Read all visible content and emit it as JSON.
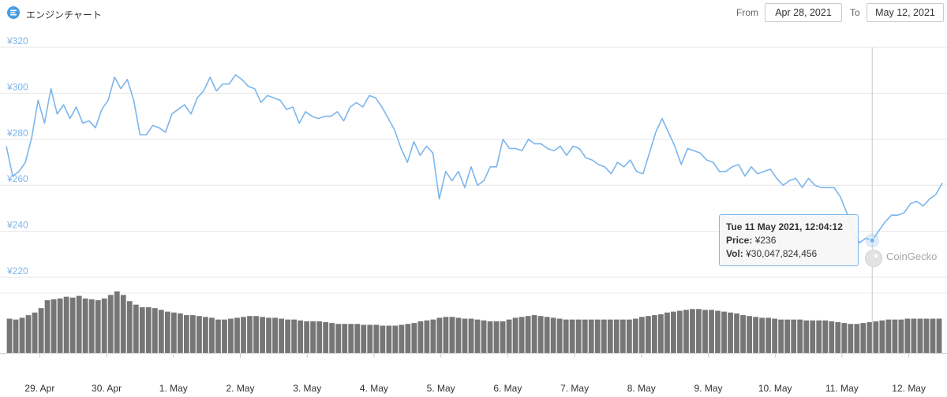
{
  "header": {
    "title": "エンジンチャート",
    "from_label": "From",
    "from_value": "Apr 28, 2021",
    "to_label": "To",
    "to_value": "May 12, 2021"
  },
  "tooltip": {
    "date": "Tue 11 May 2021, 12:04:12",
    "price_label": "Price:",
    "price_value": "¥236",
    "vol_label": "Vol:",
    "vol_value": "¥30,047,824,456"
  },
  "watermark": "CoinGecko",
  "colors": {
    "line": "#7cb5ec",
    "volume": "#767676",
    "grid": "#e6e6e6",
    "axis_text": "#7cb5ec"
  },
  "chart_data": {
    "type": "line",
    "title": "",
    "xlabel": "",
    "ylabel": "",
    "ylim": [
      220,
      320
    ],
    "yticks": [
      "¥220",
      "¥240",
      "¥260",
      "¥280",
      "¥300",
      "¥320"
    ],
    "xticks": [
      "29. Apr",
      "30. Apr",
      "1. May",
      "2. May",
      "3. May",
      "4. May",
      "5. May",
      "6. May",
      "7. May",
      "8. May",
      "9. May",
      "10. May",
      "11. May",
      "12. May"
    ],
    "x_start": "Apr 28, 2021 12:00",
    "x_end": "May 12, 2021 12:00",
    "grid": true,
    "legend": "none",
    "series": [
      {
        "values": [
          277,
          264,
          266,
          270,
          281,
          297,
          287,
          302,
          291,
          295,
          289,
          294,
          287,
          288,
          285,
          293,
          297,
          307,
          302,
          306,
          297,
          282,
          282,
          286,
          285,
          283,
          291,
          293,
          295,
          291,
          298,
          301,
          307,
          301,
          304,
          304,
          308,
          306,
          303,
          302,
          296,
          299,
          298,
          297,
          293,
          294,
          287,
          292,
          290,
          289,
          290,
          290,
          292,
          288,
          294,
          296,
          294,
          299,
          298,
          294,
          289,
          284,
          276,
          270,
          279,
          273,
          277,
          274,
          254,
          266,
          262,
          266,
          259,
          268,
          260,
          262,
          268,
          268,
          280,
          276,
          276,
          275,
          280,
          278,
          278,
          276,
          275,
          277,
          273,
          277,
          276,
          272,
          271,
          269,
          268,
          265,
          270,
          268,
          271,
          266,
          265,
          274,
          283,
          289,
          283,
          277,
          269,
          276,
          275,
          274,
          271,
          270,
          266,
          266,
          268,
          269,
          264,
          268,
          265,
          266,
          267,
          263,
          260,
          262,
          263,
          259,
          263,
          260,
          259,
          259,
          259,
          255,
          248,
          240,
          235,
          237,
          236,
          240,
          244,
          247,
          247,
          248,
          252,
          253,
          251,
          254,
          256,
          261
        ]
      }
    ],
    "volume": {
      "series_name": "Vol",
      "values": [
        39,
        38,
        40,
        43,
        46,
        51,
        60,
        61,
        62,
        64,
        63,
        65,
        62,
        61,
        60,
        62,
        66,
        70,
        66,
        59,
        55,
        52,
        52,
        51,
        49,
        47,
        46,
        45,
        43,
        43,
        42,
        41,
        40,
        38,
        38,
        39,
        40,
        41,
        42,
        42,
        41,
        40,
        40,
        39,
        38,
        38,
        37,
        36,
        36,
        36,
        35,
        34,
        33,
        33,
        33,
        33,
        32,
        32,
        32,
        31,
        31,
        31,
        32,
        33,
        34,
        36,
        37,
        38,
        40,
        41,
        41,
        40,
        39,
        39,
        38,
        37,
        36,
        36,
        36,
        38,
        40,
        41,
        42,
        43,
        42,
        41,
        40,
        39,
        38,
        38,
        38,
        38,
        38,
        38,
        38,
        38,
        38,
        38,
        38,
        39,
        41,
        42,
        43,
        44,
        46,
        47,
        48,
        49,
        50,
        50,
        49,
        49,
        48,
        47,
        46,
        45,
        43,
        42,
        41,
        40,
        40,
        39,
        38,
        38,
        38,
        38,
        37,
        37,
        37,
        37,
        36,
        35,
        34,
        33,
        33,
        34,
        35,
        36,
        37,
        38,
        38,
        38,
        39,
        39,
        39,
        39,
        39,
        39
      ]
    }
  }
}
